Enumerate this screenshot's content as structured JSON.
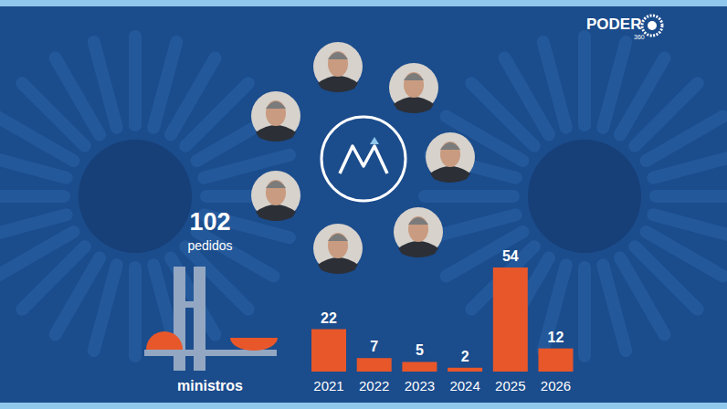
{
  "chart_data": {
    "type": "bar",
    "title": "102",
    "subtitle": "pedidos",
    "categories": [
      "2021",
      "2022",
      "2023",
      "2024",
      "2025",
      "2026"
    ],
    "values": [
      22,
      7,
      5,
      2,
      54,
      12
    ],
    "color": "#e8572a",
    "data_labels": true,
    "tick_labels": "x",
    "annotations": [
      "ministros"
    ]
  },
  "logo": {
    "name": "PODER",
    "number": "360"
  }
}
